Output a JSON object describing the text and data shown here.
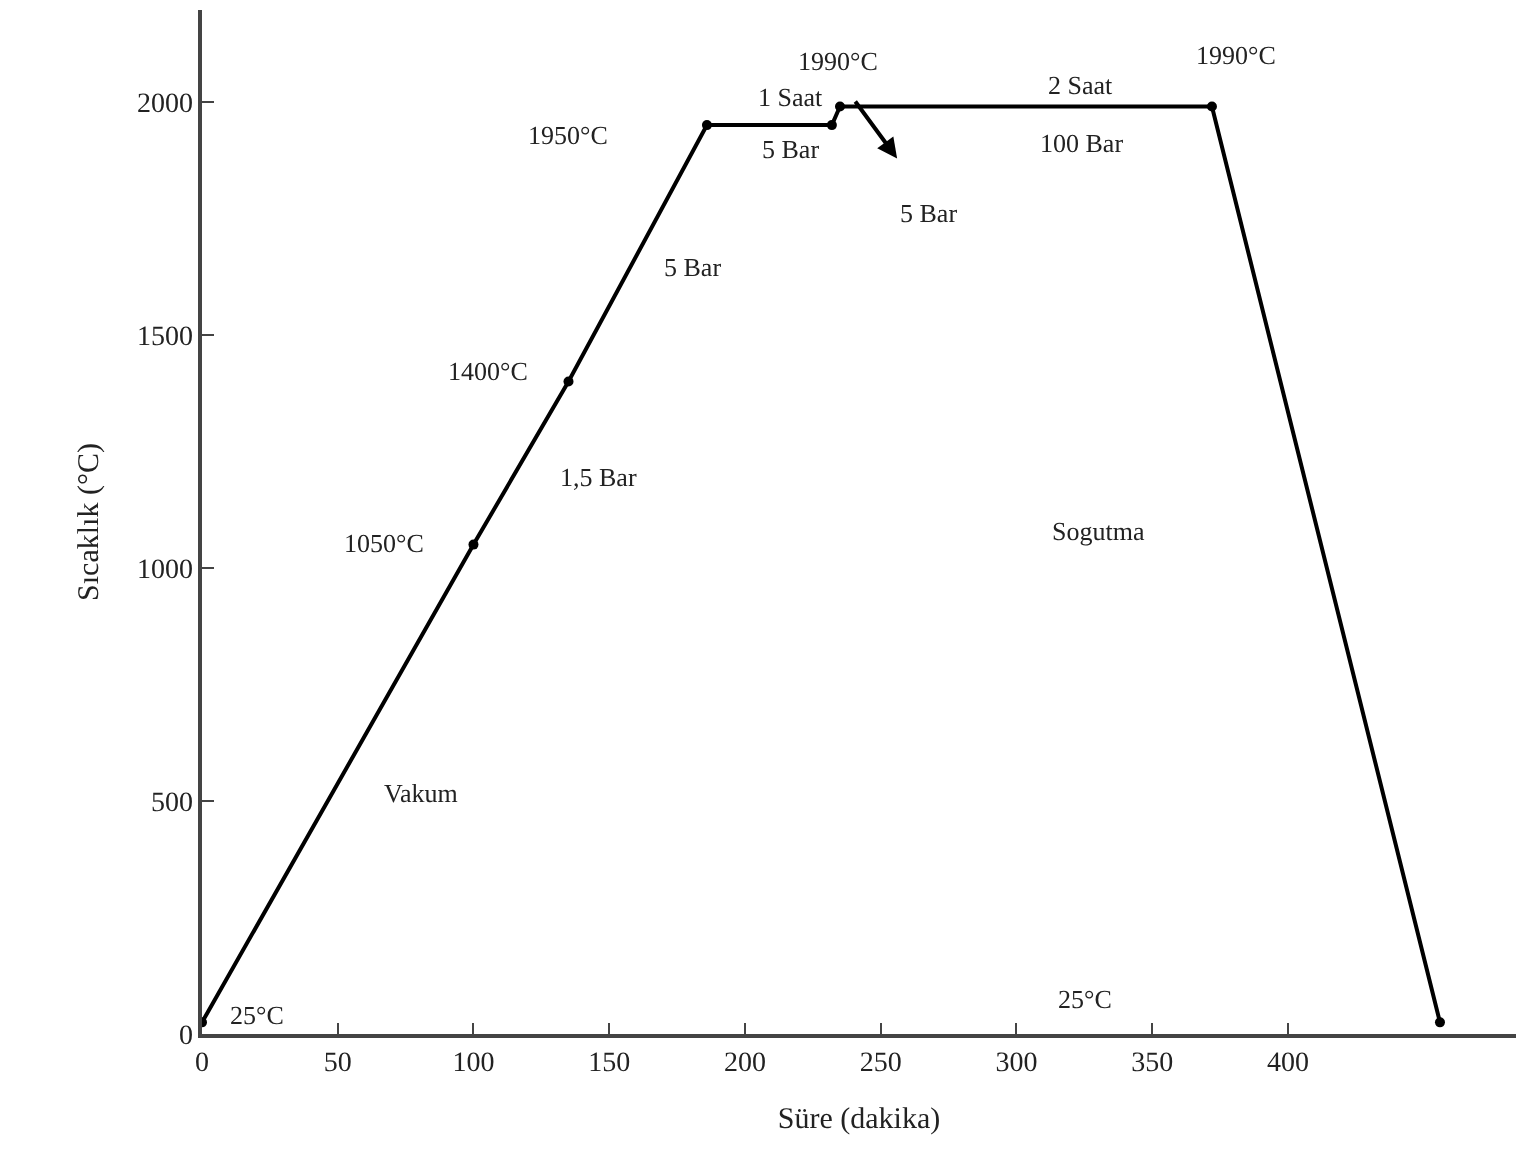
{
  "chart_data": {
    "type": "line",
    "xlabel": "Süre (dakika)",
    "ylabel": "Sıcaklık (°C)",
    "x": [
      0,
      100,
      135,
      186,
      232,
      235,
      372,
      456
    ],
    "series": [
      {
        "color": "#000000",
        "values": [
          25,
          1050,
          1400,
          1950,
          1950,
          1990,
          1990,
          25
        ]
      }
    ],
    "xlim": [
      0,
      484
    ],
    "xticks": [
      0,
      50,
      100,
      150,
      200,
      250,
      300,
      350,
      400
    ],
    "ylim": [
      0,
      2197
    ],
    "yticks": [
      0,
      500,
      1000,
      1500,
      2000
    ],
    "marker": "circle",
    "line_style": "solid",
    "annotations": [
      {
        "text": "25°C",
        "x": 0,
        "y": 25
      },
      {
        "text": "1050°C",
        "x": 100,
        "y": 1050
      },
      {
        "text": "1400°C",
        "x": 135,
        "y": 1400
      },
      "1950°C",
      {
        "text": "1 Saat",
        "x": 209,
        "y": 1950
      },
      {
        "text": "5 Bar",
        "x": 209,
        "y": 1950
      },
      {
        "text": "1990°C",
        "x": 235,
        "y": 1990
      },
      {
        "text": "2 Saat",
        "x": 324,
        "y": 1990
      },
      {
        "text": "100 Bar",
        "x": 324,
        "y": 1990
      },
      {
        "text": "1990°C",
        "x": 372,
        "y": 1990
      },
      "5 Bar",
      {
        "text": "5 Bar",
        "x": 158,
        "y": 1644
      },
      {
        "text": "1,5 Bar",
        "x": 115,
        "y": 1197
      },
      "Sogutma",
      {
        "text": "Vakum",
        "x": 48,
        "y": 519
      },
      "25°C"
    ]
  }
}
